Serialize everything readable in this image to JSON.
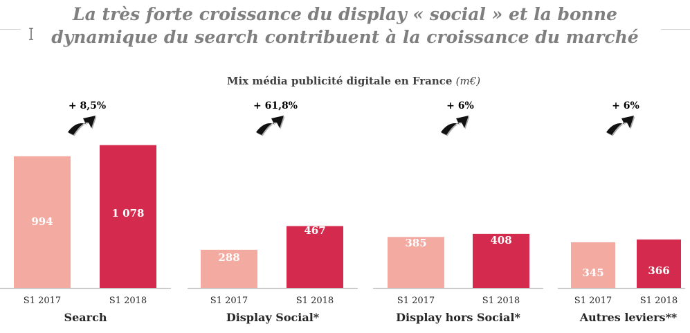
{
  "title_line1": "La très forte croissance du display « social » et la bonne",
  "title_line2": "dynamique du search contribuent à la croissance du marché",
  "chart_subtitle": "Mix média publicité digitale en France",
  "chart_unit": "(m€)",
  "colors": {
    "s1_2017": "#f2aaa1",
    "s1_2018": "#d42a4d",
    "title": "#7f7f7f",
    "arrow": "#111111"
  },
  "icons": {
    "growth_arrow": "curved-up-arrow-icon",
    "text_cursor": "text-cursor-icon"
  },
  "chart_data": {
    "type": "bar",
    "title": "Mix média publicité digitale en France",
    "unit": "(m€)",
    "series_names": [
      "S1 2017",
      "S1 2018"
    ],
    "groups": [
      {
        "label": "Search",
        "growth": "+ 8,5%",
        "values": [
          994,
          1078
        ],
        "value_labels": [
          "994",
          "1 078"
        ]
      },
      {
        "label": "Display Social*",
        "growth": "+ 61,8%",
        "values": [
          288,
          467
        ],
        "value_labels": [
          "288",
          "467"
        ]
      },
      {
        "label": "Display hors Social*",
        "growth": "+ 6%",
        "values": [
          385,
          408
        ],
        "value_labels": [
          "385",
          "408"
        ]
      },
      {
        "label": "Autres leviers**",
        "growth": "+ 6%",
        "values": [
          345,
          366
        ],
        "value_labels": [
          "345",
          "366"
        ]
      }
    ]
  }
}
